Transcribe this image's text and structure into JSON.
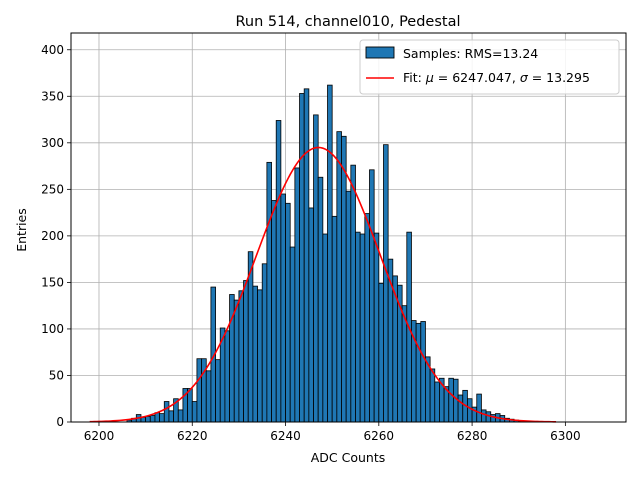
{
  "chart_data": {
    "type": "bar",
    "title": "Run 514, channel010, Pedestal",
    "xlabel": "ADC Counts",
    "ylabel": "Entries",
    "xlim": [
      6194,
      6313
    ],
    "ylim": [
      0,
      418
    ],
    "xticks": [
      6200,
      6220,
      6240,
      6260,
      6280,
      6300
    ],
    "yticks": [
      0,
      50,
      100,
      150,
      200,
      250,
      300,
      350,
      400
    ],
    "grid": true,
    "legend_position": "top-right",
    "histogram": {
      "name": "Samples: RMS=13.24",
      "color": "#1f77b4",
      "bin_width": 1,
      "bin_starts": [
        6206,
        6207,
        6208,
        6209,
        6210,
        6211,
        6212,
        6213,
        6214,
        6215,
        6216,
        6217,
        6218,
        6219,
        6220,
        6221,
        6222,
        6223,
        6224,
        6225,
        6226,
        6227,
        6228,
        6229,
        6230,
        6231,
        6232,
        6233,
        6234,
        6235,
        6236,
        6237,
        6238,
        6239,
        6240,
        6241,
        6242,
        6243,
        6244,
        6245,
        6246,
        6247,
        6248,
        6249,
        6250,
        6251,
        6252,
        6253,
        6254,
        6255,
        6256,
        6257,
        6258,
        6259,
        6260,
        6261,
        6262,
        6263,
        6264,
        6265,
        6266,
        6267,
        6268,
        6269,
        6270,
        6271,
        6272,
        6273,
        6274,
        6275,
        6276,
        6277,
        6278,
        6279,
        6280,
        6281,
        6282,
        6283,
        6284,
        6285,
        6286,
        6287,
        6288,
        6289,
        6290
      ],
      "counts": [
        2,
        4,
        8,
        5,
        6,
        7,
        10,
        9,
        22,
        12,
        25,
        13,
        36,
        36,
        22,
        68,
        68,
        55,
        145,
        67,
        101,
        98,
        137,
        131,
        141,
        152,
        183,
        146,
        142,
        170,
        279,
        238,
        324,
        245,
        235,
        188,
        273,
        353,
        358,
        230,
        330,
        263,
        202,
        362,
        221,
        312,
        307,
        248,
        276,
        204,
        202,
        224,
        271,
        203,
        149,
        298,
        175,
        157,
        147,
        125,
        204,
        109,
        106,
        108,
        70,
        57,
        43,
        47,
        38,
        47,
        46,
        29,
        34,
        25,
        16,
        30,
        13,
        11,
        8,
        9,
        7,
        4,
        3,
        2,
        1
      ]
    },
    "series": [
      {
        "name": "Fit: $\\mu$ = 6247.047, $\\sigma$ = 13.295",
        "color": "#ff0000",
        "fit": {
          "mu": 6247.047,
          "sigma": 13.295,
          "amplitude": 295,
          "x_range": [
            6198,
            6298
          ]
        }
      }
    ]
  }
}
